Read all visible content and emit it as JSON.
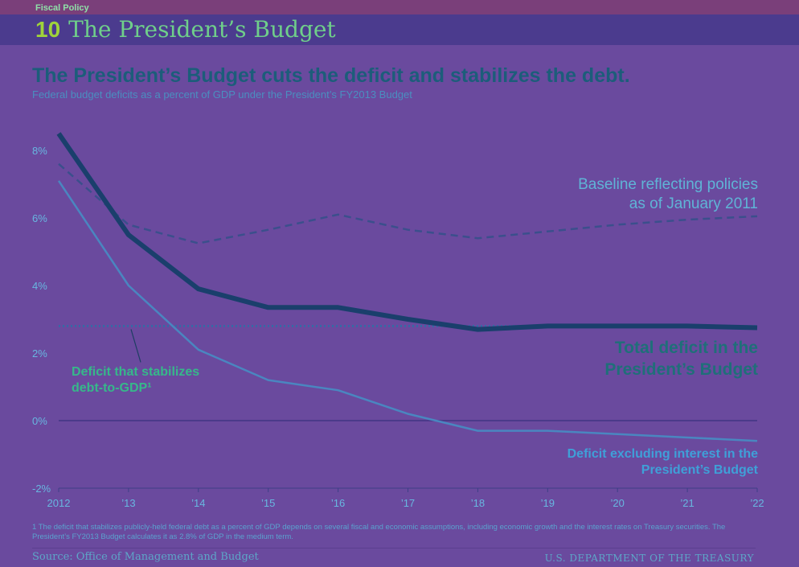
{
  "header": {
    "section": "Fiscal Policy",
    "chapter_number": "10",
    "chapter_title": "The President’s Budget"
  },
  "colors": {
    "background": "#6a4a9e",
    "total_deficit": "#1a3f6c",
    "baseline": "#3b4f8c",
    "excl_interest": "#4a86c0",
    "stabilizing": "#2e6fa6",
    "zero_line": "#4b3a8a",
    "label_green": "#36b88a"
  },
  "chart_data": {
    "type": "line",
    "title": "The President’s Budget cuts the deficit and stabilizes the debt.",
    "subtitle": "Federal budget deficits as a percent of GDP under the President’s FY2013 Budget",
    "xlabel": "",
    "ylabel": "",
    "x": [
      2012,
      2013,
      2014,
      2015,
      2016,
      2017,
      2018,
      2019,
      2020,
      2021,
      2022
    ],
    "x_tick_labels": [
      "2012",
      "’13",
      "’14",
      "’15",
      "’16",
      "’17",
      "’18",
      "’19",
      "’20",
      "’21",
      "’22"
    ],
    "y_tick_labels": [
      "8%",
      "6%",
      "4%",
      "2%",
      "0%",
      "-2%"
    ],
    "y_ticks": [
      8,
      6,
      4,
      2,
      0,
      -2
    ],
    "ylim": [
      -2,
      8.5
    ],
    "grid": false,
    "series": [
      {
        "key": "baseline",
        "name": "Baseline reflecting policies as of January 2011",
        "style": "dashed",
        "values": [
          7.6,
          5.8,
          5.25,
          5.65,
          6.1,
          5.65,
          5.4,
          5.6,
          5.8,
          5.95,
          6.05
        ]
      },
      {
        "key": "total",
        "name": "Total deficit in the President’s Budget",
        "style": "thick",
        "values": [
          8.5,
          5.5,
          3.9,
          3.35,
          3.35,
          3.0,
          2.7,
          2.8,
          2.8,
          2.8,
          2.75
        ]
      },
      {
        "key": "excl_interest",
        "name": "Deficit excluding interest in the President’s Budget",
        "style": "thin",
        "values": [
          7.1,
          4.0,
          2.1,
          1.2,
          0.9,
          0.2,
          -0.3,
          -0.3,
          -0.4,
          -0.5,
          -0.6
        ]
      },
      {
        "key": "stabilizing",
        "name": "Deficit that stabilizes debt-to-GDP¹",
        "style": "dotted",
        "values": [
          2.8,
          2.8,
          2.8,
          2.8,
          2.8,
          2.8,
          2.8,
          2.8,
          2.8,
          2.8,
          2.8
        ]
      }
    ],
    "annotations": {
      "baseline_line1": "Baseline reflecting policies",
      "baseline_line2": "as of January 2011",
      "total_line1": "Total deficit in the",
      "total_line2": "President’s Budget",
      "stab_line1": "Deficit that stabilizes",
      "stab_line2": "debt-to-GDP¹",
      "excl_line1": "Deficit excluding interest in the",
      "excl_line2": "President’s Budget"
    }
  },
  "footnote": "1 The deficit that stabilizes publicly-held federal debt as a percent of GDP depends on several fiscal and economic assumptions, including economic growth and the interest rates on Treasury securities. The President’s FY2013 Budget calculates it as 2.8% of GDP in the medium term.",
  "footer": {
    "source": "Source: Office of Management and Budget",
    "department": "U.S. DEPARTMENT OF THE TREASURY"
  }
}
